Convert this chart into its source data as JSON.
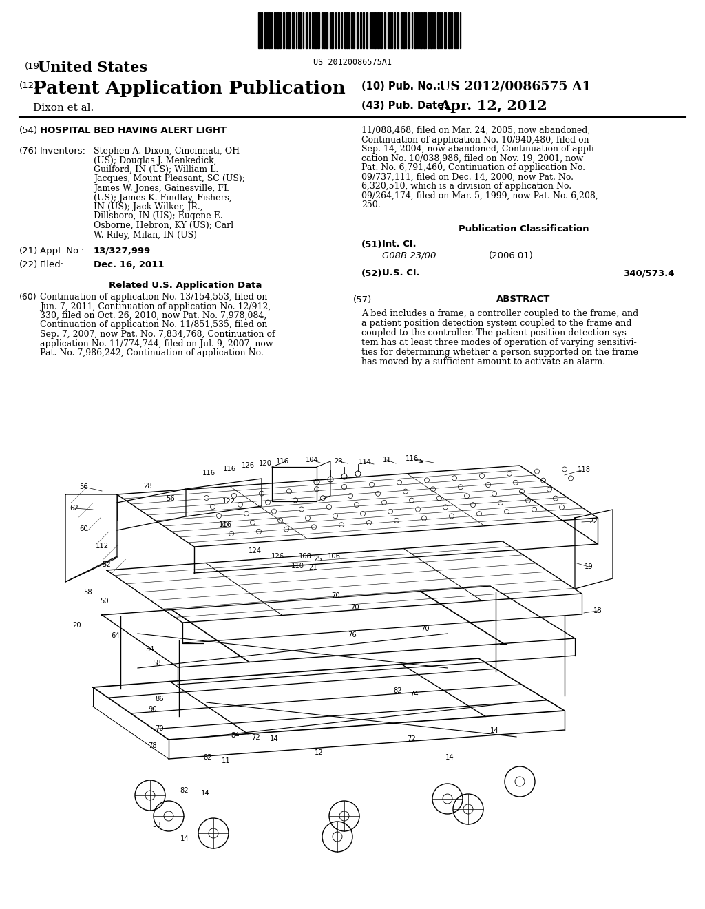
{
  "background_color": "#ffffff",
  "barcode_text": "US 20120086575A1",
  "header": {
    "country_label": "(19)",
    "country": "United States",
    "type_label": "(12)",
    "type": "Patent Application Publication",
    "inventors": "Dixon et al.",
    "pub_no_label": "(10) Pub. No.:",
    "pub_no": "US 2012/0086575 A1",
    "pub_date_label": "(43) Pub. Date:",
    "pub_date": "Apr. 12, 2012"
  },
  "fields": {
    "title_num": "(54)",
    "title_label": "HOSPITAL BED HAVING ALERT LIGHT",
    "inventors_num": "(76)",
    "inventors_label": "Inventors:",
    "inventors_text": "Stephen A. Dixon, Cincinnati, OH\n(US); Douglas J. Menkedick,\nGuilford, IN (US); William L.\nJacques, Mount Pleasant, SC (US);\nJames W. Jones, Gainesville, FL\n(US); James K. Findlay, Fishers,\nIN (US); Jack Wilker, JR.,\nDillsboro, IN (US); Eugene E.\nOsborne, Hebron, KY (US); Carl\nW. Riley, Milan, IN (US)",
    "appl_num": "(21)",
    "appl_label": "Appl. No.:",
    "appl_value": "13/327,999",
    "filed_num": "(22)",
    "filed_label": "Filed:",
    "filed_value": "Dec. 16, 2011",
    "related_title": "Related U.S. Application Data",
    "related_num": "(60)",
    "related_text": "Continuation of application No. 13/154,553, filed on\nJun. 7, 2011, Continuation of application No. 12/912,\n330, filed on Oct. 26, 2010, now Pat. No. 7,978,084,\nContinuation of application No. 11/851,535, filed on\nSep. 7, 2007, now Pat. No. 7,834,768, Continuation of\napplication No. 11/774,744, filed on Jul. 9, 2007, now\nPat. No. 7,986,242, Continuation of application No.",
    "right_related_text": "11/088,468, filed on Mar. 24, 2005, now abandoned,\nContinuation of application No. 10/940,480, filed on\nSep. 14, 2004, now abandoned, Continuation of appli-\ncation No. 10/038,986, filed on Nov. 19, 2001, now\nPat. No. 6,791,460, Continuation of application No.\n09/737,111, filed on Dec. 14, 2000, now Pat. No.\n6,320,510, which is a division of application No.\n09/264,174, filed on Mar. 5, 1999, now Pat. No. 6,208,\n250.",
    "pub_class_title": "Publication Classification",
    "int_cl_num": "(51)",
    "int_cl_label": "Int. Cl.",
    "int_cl_value": "G08B 23/00",
    "int_cl_year": "(2006.01)",
    "us_cl_num": "(52)",
    "us_cl_label": "U.S. Cl.",
    "us_cl_dots": ".................................................",
    "us_cl_value": "340/573.4",
    "abstract_num": "(57)",
    "abstract_title": "ABSTRACT",
    "abstract_text": "A bed includes a frame, a controller coupled to the frame, and\na patient position detection system coupled to the frame and\ncoupled to the controller. The patient position detection sys-\ntem has at least three modes of operation of varying sensitivi-\nties for determining whether a person supported on the frame\nhas moved by a sufficient amount to activate an alarm."
  }
}
